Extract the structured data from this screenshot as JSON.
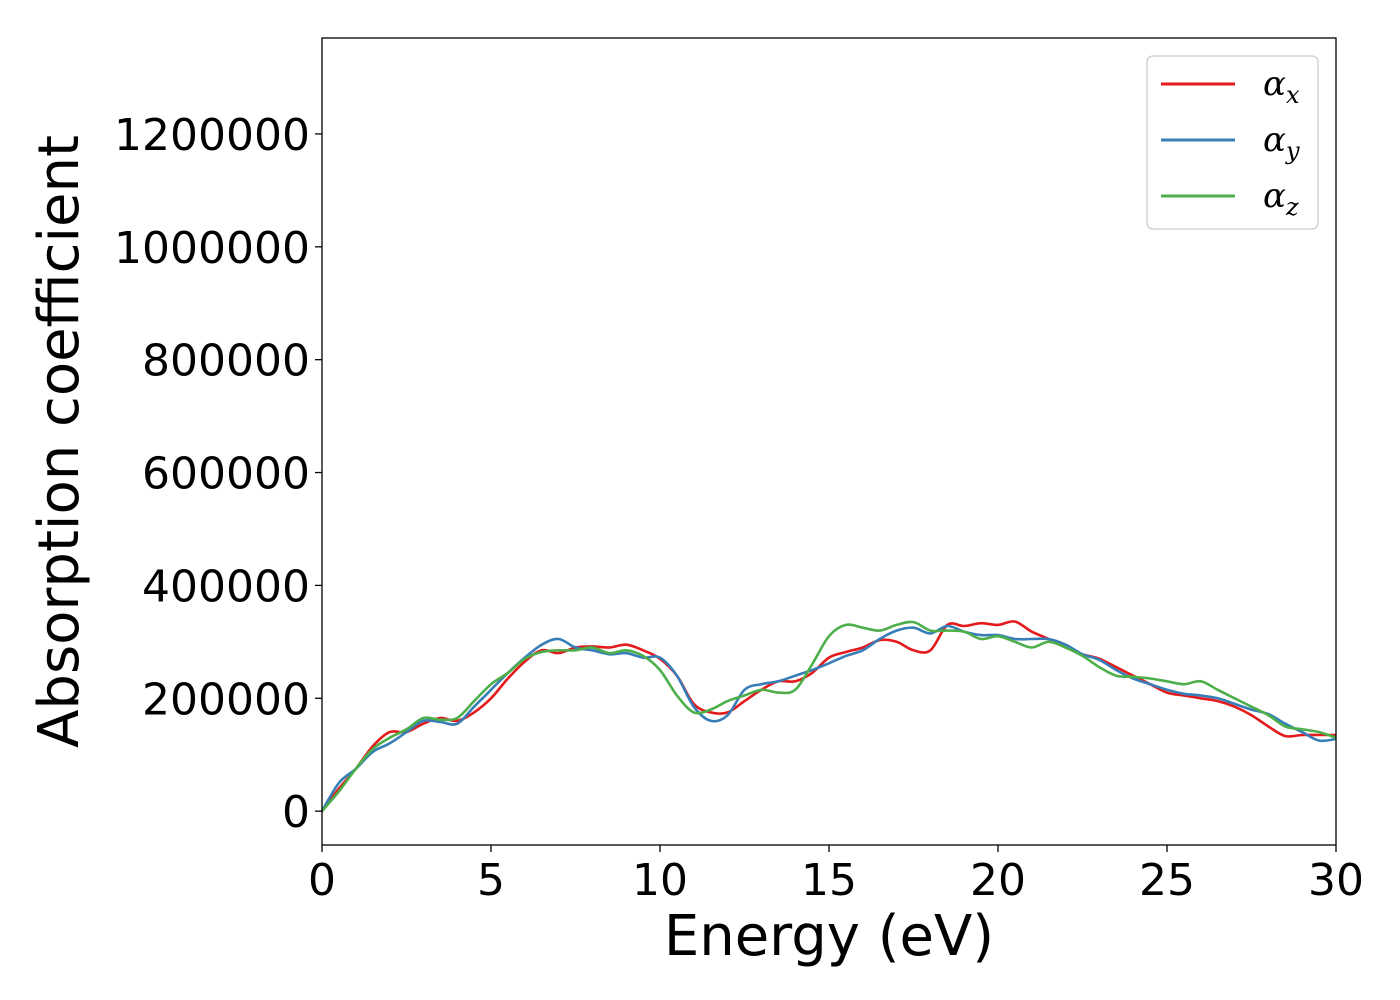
{
  "chart_data": {
    "type": "line",
    "title": "",
    "xlabel": "Energy (eV)",
    "ylabel": "Absorption coefficient",
    "xlim": [
      0,
      30
    ],
    "ylim": [
      -60000,
      1370000
    ],
    "x_ticks": [
      "0",
      "5",
      "10",
      "15",
      "20",
      "25",
      "30"
    ],
    "x_tick_values": [
      0,
      5,
      10,
      15,
      20,
      25,
      30
    ],
    "y_ticks": [
      "0",
      "200000",
      "400000",
      "600000",
      "800000",
      "1000000",
      "1200000"
    ],
    "y_tick_values": [
      0,
      200000,
      400000,
      600000,
      800000,
      1000000,
      1200000
    ],
    "grid": false,
    "legend_position": "top-right",
    "series": [
      {
        "name": "α_x",
        "label_base": "α",
        "label_sub": "x",
        "color": "#e41a1c",
        "x": [
          0,
          0.5,
          1,
          1.5,
          2,
          2.5,
          3,
          3.5,
          4,
          4.5,
          5,
          5.5,
          6,
          6.5,
          7,
          7.5,
          8,
          8.5,
          9,
          9.5,
          10,
          10.5,
          11,
          11.5,
          12,
          12.5,
          13,
          13.5,
          14,
          14.5,
          15,
          15.5,
          16,
          16.5,
          17,
          17.5,
          18,
          18.5,
          19,
          19.5,
          20,
          20.5,
          21,
          21.5,
          22,
          22.5,
          23,
          23.5,
          24,
          24.5,
          25,
          25.5,
          26,
          26.5,
          27,
          27.5,
          28,
          28.5,
          29,
          29.5,
          30
        ],
        "y": [
          0,
          40000,
          75000,
          115000,
          140000,
          140000,
          155000,
          165000,
          160000,
          175000,
          200000,
          235000,
          265000,
          285000,
          280000,
          290000,
          292000,
          290000,
          295000,
          285000,
          270000,
          240000,
          190000,
          175000,
          175000,
          195000,
          215000,
          230000,
          230000,
          245000,
          272000,
          282000,
          290000,
          303000,
          300000,
          285000,
          285000,
          330000,
          328000,
          333000,
          330000,
          336000,
          318000,
          305000,
          290000,
          278000,
          270000,
          255000,
          240000,
          225000,
          210000,
          205000,
          200000,
          195000,
          185000,
          170000,
          150000,
          133000,
          135000,
          135000,
          135000
        ]
      },
      {
        "name": "α_y",
        "label_base": "α",
        "label_sub": "y",
        "color": "#377eb8",
        "x": [
          0,
          0.5,
          1,
          1.5,
          2,
          2.5,
          3,
          3.5,
          4,
          4.5,
          5,
          5.5,
          6,
          6.5,
          7,
          7.5,
          8,
          8.5,
          9,
          9.5,
          10,
          10.5,
          11,
          11.5,
          12,
          12.5,
          13,
          13.5,
          14,
          14.5,
          15,
          15.5,
          16,
          16.5,
          17,
          17.5,
          18,
          18.5,
          19,
          19.5,
          20,
          20.5,
          21,
          21.5,
          22,
          22.5,
          23,
          23.5,
          24,
          24.5,
          25,
          25.5,
          26,
          26.5,
          27,
          27.5,
          28,
          28.5,
          29,
          29.5,
          30
        ],
        "y": [
          0,
          50000,
          75000,
          105000,
          120000,
          140000,
          160000,
          158000,
          155000,
          185000,
          215000,
          245000,
          272000,
          295000,
          305000,
          290000,
          285000,
          278000,
          280000,
          272000,
          272000,
          240000,
          185000,
          160000,
          170000,
          215000,
          225000,
          230000,
          240000,
          250000,
          262000,
          275000,
          285000,
          305000,
          320000,
          325000,
          315000,
          328000,
          318000,
          312000,
          312000,
          305000,
          305000,
          305000,
          295000,
          278000,
          268000,
          250000,
          235000,
          225000,
          215000,
          208000,
          205000,
          200000,
          190000,
          180000,
          172000,
          155000,
          140000,
          125000,
          128000
        ]
      },
      {
        "name": "α_z",
        "label_base": "α",
        "label_sub": "z",
        "color": "#4daf4a",
        "x": [
          0,
          0.5,
          1,
          1.5,
          2,
          2.5,
          3,
          3.5,
          4,
          4.5,
          5,
          5.5,
          6,
          6.5,
          7,
          7.5,
          8,
          8.5,
          9,
          9.5,
          10,
          10.5,
          11,
          11.5,
          12,
          12.5,
          13,
          13.5,
          14,
          14.5,
          15,
          15.5,
          16,
          16.5,
          17,
          17.5,
          18,
          18.5,
          19,
          19.5,
          20,
          20.5,
          21,
          21.5,
          22,
          22.5,
          23,
          23.5,
          24,
          24.5,
          25,
          25.5,
          26,
          26.5,
          27,
          27.5,
          28,
          28.5,
          29,
          29.5,
          30
        ],
        "y": [
          0,
          35000,
          75000,
          110000,
          130000,
          145000,
          165000,
          162000,
          165000,
          195000,
          225000,
          245000,
          270000,
          282000,
          285000,
          285000,
          290000,
          280000,
          285000,
          275000,
          250000,
          205000,
          175000,
          180000,
          195000,
          205000,
          215000,
          210000,
          215000,
          260000,
          310000,
          330000,
          325000,
          320000,
          330000,
          335000,
          320000,
          320000,
          318000,
          305000,
          310000,
          300000,
          290000,
          300000,
          290000,
          275000,
          255000,
          240000,
          238000,
          235000,
          230000,
          225000,
          230000,
          215000,
          200000,
          185000,
          170000,
          150000,
          145000,
          140000,
          130000
        ]
      }
    ]
  }
}
